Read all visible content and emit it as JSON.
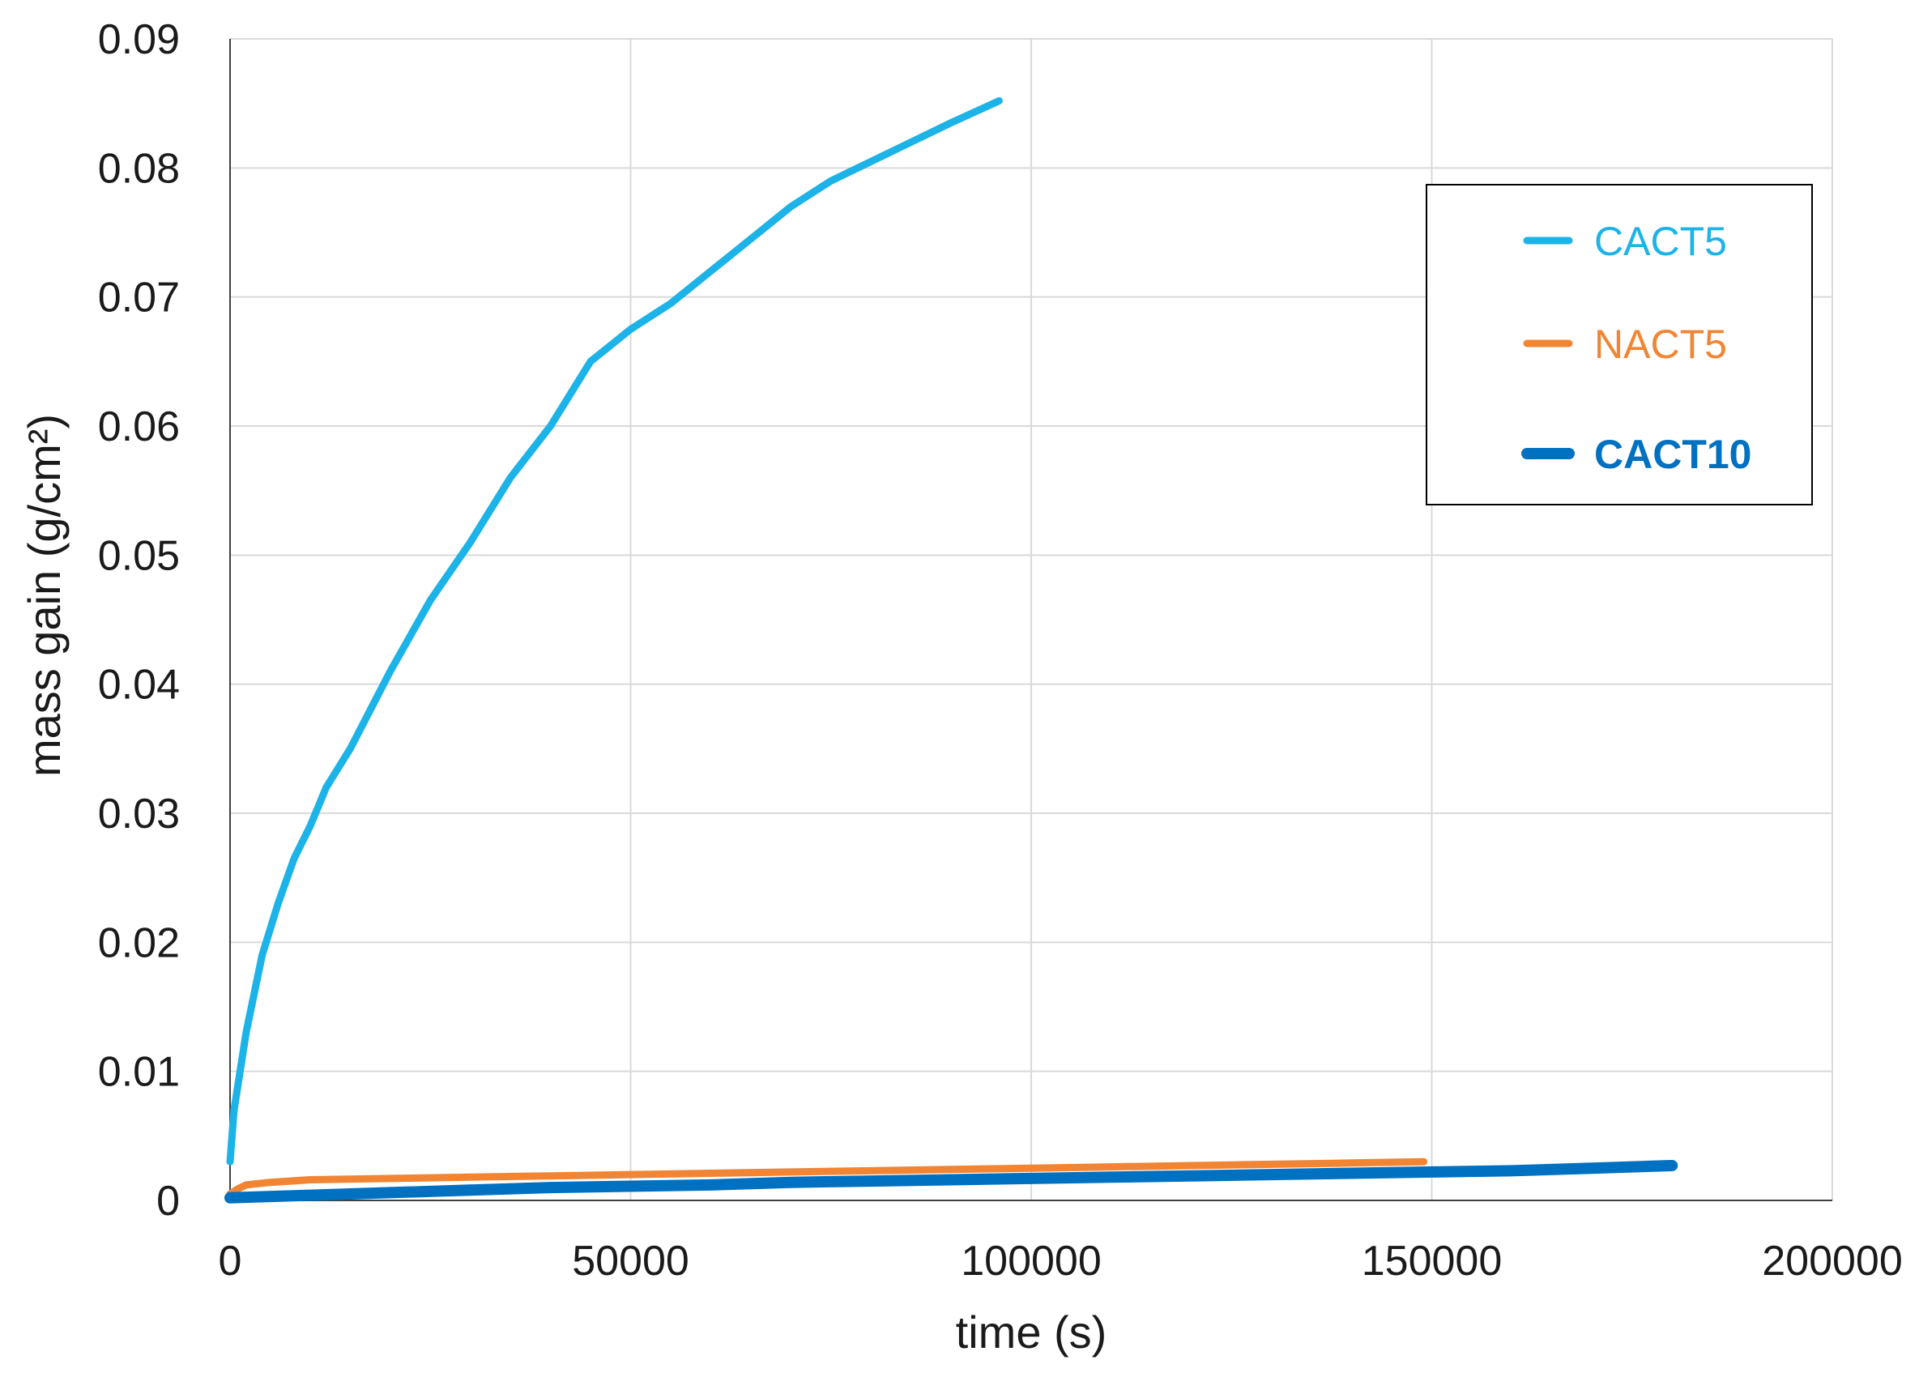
{
  "chart_data": {
    "type": "line",
    "xlabel": "time (s)",
    "ylabel": "mass gain (g/cm²)",
    "xlim": [
      0,
      200000
    ],
    "ylim": [
      0,
      0.09
    ],
    "xticks": [
      0,
      50000,
      100000,
      150000,
      200000
    ],
    "xtick_labels": [
      "0",
      "50000",
      "100000",
      "150000",
      "200000"
    ],
    "yticks": [
      0,
      0.01,
      0.02,
      0.03,
      0.04,
      0.05,
      0.06,
      0.07,
      0.08,
      0.09
    ],
    "ytick_labels": [
      "0",
      "0.01",
      "0.02",
      "0.03",
      "0.04",
      "0.05",
      "0.06",
      "0.07",
      "0.08",
      "0.09"
    ],
    "grid": true,
    "legend_position": "top-right",
    "series": [
      {
        "name": "CACT5",
        "color": "#1cb3e8",
        "x": [
          0,
          500,
          1000,
          2000,
          4000,
          6000,
          8000,
          10000,
          12000,
          15000,
          20000,
          25000,
          30000,
          35000,
          40000,
          45000,
          50000,
          55000,
          60000,
          65000,
          70000,
          75000,
          80000,
          85000,
          90000,
          96000
        ],
        "y": [
          0.003,
          0.007,
          0.009,
          0.013,
          0.019,
          0.023,
          0.0265,
          0.029,
          0.032,
          0.035,
          0.041,
          0.0465,
          0.051,
          0.056,
          0.06,
          0.065,
          0.0675,
          0.0695,
          0.072,
          0.0745,
          0.077,
          0.079,
          0.0805,
          0.082,
          0.0835,
          0.0852
        ]
      },
      {
        "name": "NACT5",
        "color": "#f18534",
        "x": [
          0,
          1000,
          2000,
          5000,
          10000,
          20000,
          30000,
          40000,
          50000,
          60000,
          70000,
          80000,
          90000,
          100000,
          110000,
          120000,
          130000,
          140000,
          149000
        ],
        "y": [
          0.0005,
          0.0009,
          0.0012,
          0.0014,
          0.0016,
          0.0017,
          0.0018,
          0.0019,
          0.002,
          0.0021,
          0.0022,
          0.0023,
          0.0024,
          0.0025,
          0.0026,
          0.0027,
          0.0028,
          0.0029,
          0.003
        ]
      },
      {
        "name": "CACT10",
        "color": "#0070c0",
        "x": [
          0,
          10000,
          20000,
          30000,
          40000,
          50000,
          60000,
          70000,
          80000,
          90000,
          100000,
          110000,
          120000,
          130000,
          140000,
          150000,
          160000,
          170000,
          180000
        ],
        "y": [
          0.0002,
          0.0004,
          0.0006,
          0.0008,
          0.001,
          0.0011,
          0.0012,
          0.0014,
          0.0015,
          0.0016,
          0.0017,
          0.0018,
          0.0019,
          0.002,
          0.0021,
          0.0022,
          0.0023,
          0.0025,
          0.0027
        ]
      }
    ]
  }
}
